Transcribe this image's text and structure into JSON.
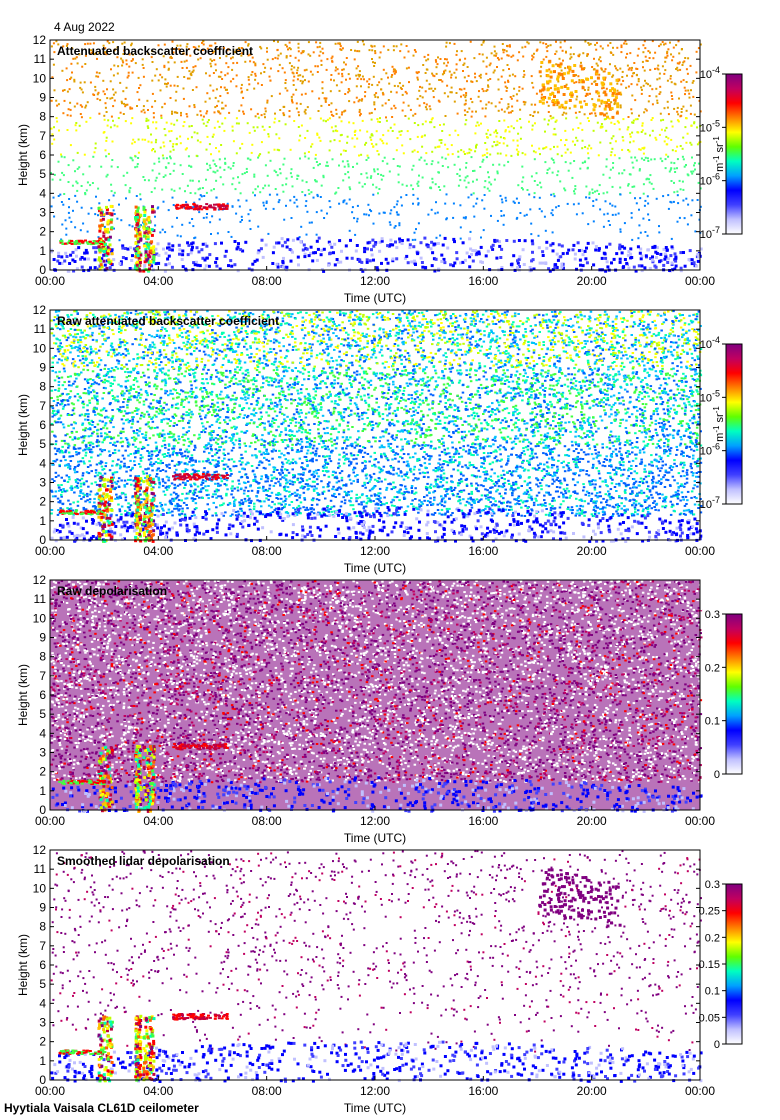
{
  "date_label": "4 Aug 2022",
  "footer_label": "Hyytiala Vaisala CL61D ceilometer",
  "chart_data": [
    {
      "type": "heatmap",
      "title": "Attenuated backscatter coefficient",
      "xlabel": "Time (UTC)",
      "ylabel": "Height (km)",
      "xticks": [
        "00:00",
        "04:00",
        "08:00",
        "12:00",
        "16:00",
        "20:00",
        "00:00"
      ],
      "yticks": [
        "0",
        "1",
        "2",
        "3",
        "4",
        "5",
        "6",
        "7",
        "8",
        "9",
        "10",
        "11",
        "12"
      ],
      "xlim": [
        0,
        24
      ],
      "ylim": [
        0,
        12
      ],
      "colorbar": {
        "scale": "log",
        "ticks": [
          {
            "base": "10",
            "exp": "-4"
          },
          {
            "base": "10",
            "exp": "-5"
          },
          {
            "base": "10",
            "exp": "-6"
          },
          {
            "base": "10",
            "exp": "-7"
          }
        ],
        "units": {
          "base1": "m",
          "exp1": "-1",
          "base2": "sr",
          "exp2": "-1"
        }
      },
      "noise_style": "sparse-bs"
    },
    {
      "type": "heatmap",
      "title": "Raw attenuated backscatter coefficient",
      "xlabel": "Time (UTC)",
      "ylabel": "Height (km)",
      "xticks": [
        "00:00",
        "04:00",
        "08:00",
        "12:00",
        "16:00",
        "20:00",
        "00:00"
      ],
      "yticks": [
        "0",
        "1",
        "2",
        "3",
        "4",
        "5",
        "6",
        "7",
        "8",
        "9",
        "10",
        "11",
        "12"
      ],
      "xlim": [
        0,
        24
      ],
      "ylim": [
        0,
        12
      ],
      "colorbar": {
        "scale": "log",
        "ticks": [
          {
            "base": "10",
            "exp": "-4"
          },
          {
            "base": "10",
            "exp": "-5"
          },
          {
            "base": "10",
            "exp": "-6"
          },
          {
            "base": "10",
            "exp": "-7"
          }
        ],
        "units": {
          "base1": "m",
          "exp1": "-1",
          "base2": "sr",
          "exp2": "-1"
        }
      },
      "noise_style": "dense-bs"
    },
    {
      "type": "heatmap",
      "title": "Raw depolarisation",
      "xlabel": "Time (UTC)",
      "ylabel": "Height (km)",
      "xticks": [
        "00:00",
        "04:00",
        "08:00",
        "12:00",
        "16:00",
        "20:00",
        "00:00"
      ],
      "yticks": [
        "0",
        "1",
        "2",
        "3",
        "4",
        "5",
        "6",
        "7",
        "8",
        "9",
        "10",
        "11",
        "12"
      ],
      "xlim": [
        0,
        24
      ],
      "ylim": [
        0,
        12
      ],
      "colorbar": {
        "scale": "linear",
        "ticks": [
          {
            "label": "0.3"
          },
          {
            "label": "0.2"
          },
          {
            "label": "0.1"
          },
          {
            "label": "0"
          }
        ],
        "range": [
          0,
          0.3
        ]
      },
      "noise_style": "dense-depol"
    },
    {
      "type": "heatmap",
      "title": "Smoothed lidar depolarisation",
      "xlabel": "Time (UTC)",
      "ylabel": "Height (km)",
      "xticks": [
        "00:00",
        "04:00",
        "08:00",
        "12:00",
        "16:00",
        "20:00",
        "00:00"
      ],
      "yticks": [
        "0",
        "1",
        "2",
        "3",
        "4",
        "5",
        "6",
        "7",
        "8",
        "9",
        "10",
        "11",
        "12"
      ],
      "xlim": [
        0,
        24
      ],
      "ylim": [
        0,
        12
      ],
      "colorbar": {
        "scale": "linear",
        "ticks": [
          {
            "label": "0.3"
          },
          {
            "label": "0.25"
          },
          {
            "label": "0.2"
          },
          {
            "label": "0.15"
          },
          {
            "label": "0.1"
          },
          {
            "label": "0.05"
          },
          {
            "label": "0"
          }
        ],
        "range": [
          0,
          0.3
        ]
      },
      "noise_style": "sparse-depol"
    }
  ]
}
